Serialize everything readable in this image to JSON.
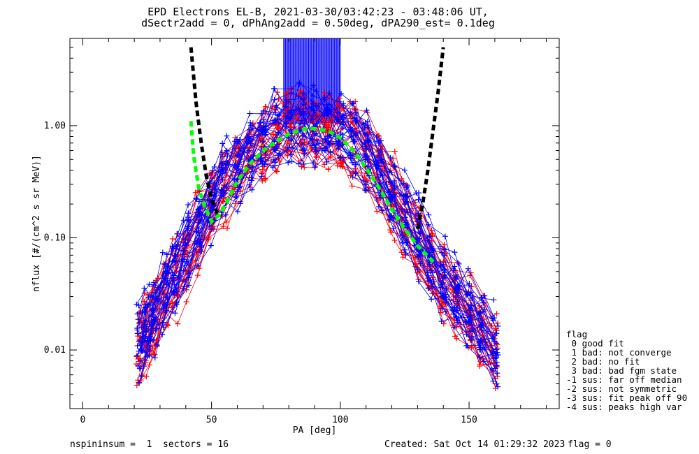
{
  "title_lines": [
    "EPD Electrons EL-B, 2021-03-30/03:42:23 - 03:48:06 UT,",
    "dSectr2add = 0, dPhAng2add = 0.50deg, dPA290_est=   0.1deg"
  ],
  "legend": {
    "title": "flag",
    "entries": [
      " 0 good fit",
      " 1 bad: not converge",
      " 2 bad: no fit",
      " 3 bad: bad fgm state",
      "-1 sus: far off median",
      "-2 sus: not symmetric",
      "-3 sus: fit peak off 90",
      "-4 sus: peaks high var"
    ]
  },
  "footer": {
    "left": "nspininsum =  1  sectors = 16",
    "created": "Created: Sat Oct 14 01:29:32 2023",
    "flag": "flag = 0"
  },
  "colors": {
    "series_a": "#ff0000",
    "series_b": "#0000ff",
    "median_fit": "#00ff00",
    "reference_curve": "#000000",
    "axes": "#000000",
    "background": "#ffffff"
  },
  "chart_data": {
    "type": "line",
    "xlabel": "PA [deg]",
    "ylabel": "nflux [#/(cm^2 s sr MeV)]",
    "xlim": [
      -5,
      185
    ],
    "ylim": [
      0.003,
      6.0
    ],
    "yscale": "log",
    "x_ticks": [
      0,
      50,
      100,
      150
    ],
    "x_tick_labels": [
      "0",
      "50",
      "100",
      "150"
    ],
    "x_minor_ticks": [
      10,
      20,
      30,
      40,
      60,
      70,
      80,
      90,
      110,
      120,
      130,
      140,
      160,
      170,
      180
    ],
    "y_ticks": [
      0.01,
      0.1,
      1.0
    ],
    "y_tick_labels": [
      "0.01",
      "0.10",
      "1.00"
    ],
    "grid": false,
    "legend_placement": "right, outside plot",
    "series": [
      {
        "color": "#ff0000",
        "style": "line+plus",
        "x": [
          22,
          25,
          28,
          32,
          36,
          40,
          45,
          50,
          55,
          60,
          65,
          70,
          75,
          80,
          85,
          90,
          95,
          100,
          105,
          110,
          115,
          120,
          125,
          130,
          135,
          140,
          145,
          150,
          155,
          160
        ],
        "peak": [
          0.01,
          0.014,
          0.02,
          0.03,
          0.045,
          0.07,
          0.12,
          0.2,
          0.3,
          0.4,
          0.55,
          0.72,
          0.88,
          1.0,
          0.98,
          0.95,
          0.93,
          0.9,
          0.75,
          0.55,
          0.38,
          0.25,
          0.15,
          0.09,
          0.06,
          0.04,
          0.03,
          0.02,
          0.014,
          0.01
        ]
      },
      {
        "color": "#0000ff",
        "style": "line+plus",
        "x": [
          22,
          25,
          28,
          32,
          36,
          40,
          45,
          50,
          55,
          60,
          65,
          70,
          75,
          80,
          85,
          90,
          95,
          100,
          105,
          110,
          115,
          120,
          125,
          130,
          135,
          140,
          145,
          150,
          155,
          160
        ],
        "peak": [
          0.012,
          0.016,
          0.022,
          0.034,
          0.05,
          0.08,
          0.13,
          0.21,
          0.32,
          0.42,
          0.58,
          0.75,
          0.9,
          1.02,
          1.0,
          0.96,
          0.94,
          0.92,
          0.78,
          0.58,
          0.4,
          0.26,
          0.16,
          0.1,
          0.065,
          0.045,
          0.032,
          0.022,
          0.015,
          0.011
        ]
      },
      {
        "color": "#00ff00",
        "style": "dashed",
        "x": [
          42,
          43,
          45,
          47,
          50,
          53,
          56,
          60,
          65,
          70,
          75,
          80,
          85,
          88,
          92,
          96,
          100,
          105,
          110,
          115,
          120,
          125,
          130,
          135,
          137
        ],
        "y": [
          1.1,
          0.55,
          0.28,
          0.2,
          0.14,
          0.16,
          0.21,
          0.32,
          0.46,
          0.6,
          0.72,
          0.84,
          0.92,
          0.95,
          0.93,
          0.88,
          0.78,
          0.6,
          0.42,
          0.28,
          0.18,
          0.12,
          0.085,
          0.065,
          0.058
        ]
      },
      {
        "color": "#000000",
        "style": "dashed",
        "x": [
          42,
          44,
          46,
          48,
          50,
          52,
          54
        ],
        "y": [
          5.0,
          1.6,
          0.7,
          0.35,
          0.22,
          0.17,
          0.16
        ]
      },
      {
        "color": "#000000",
        "style": "dashed",
        "x": [
          130,
          132,
          134,
          136,
          138,
          140
        ],
        "y": [
          0.12,
          0.2,
          0.4,
          0.9,
          2.0,
          5.0
        ]
      }
    ],
    "saturated_bars": {
      "color": "#0000ff",
      "x_range": [
        78,
        100
      ],
      "y_bottom": 1.05,
      "y_top": 6.0,
      "count": 60
    }
  }
}
